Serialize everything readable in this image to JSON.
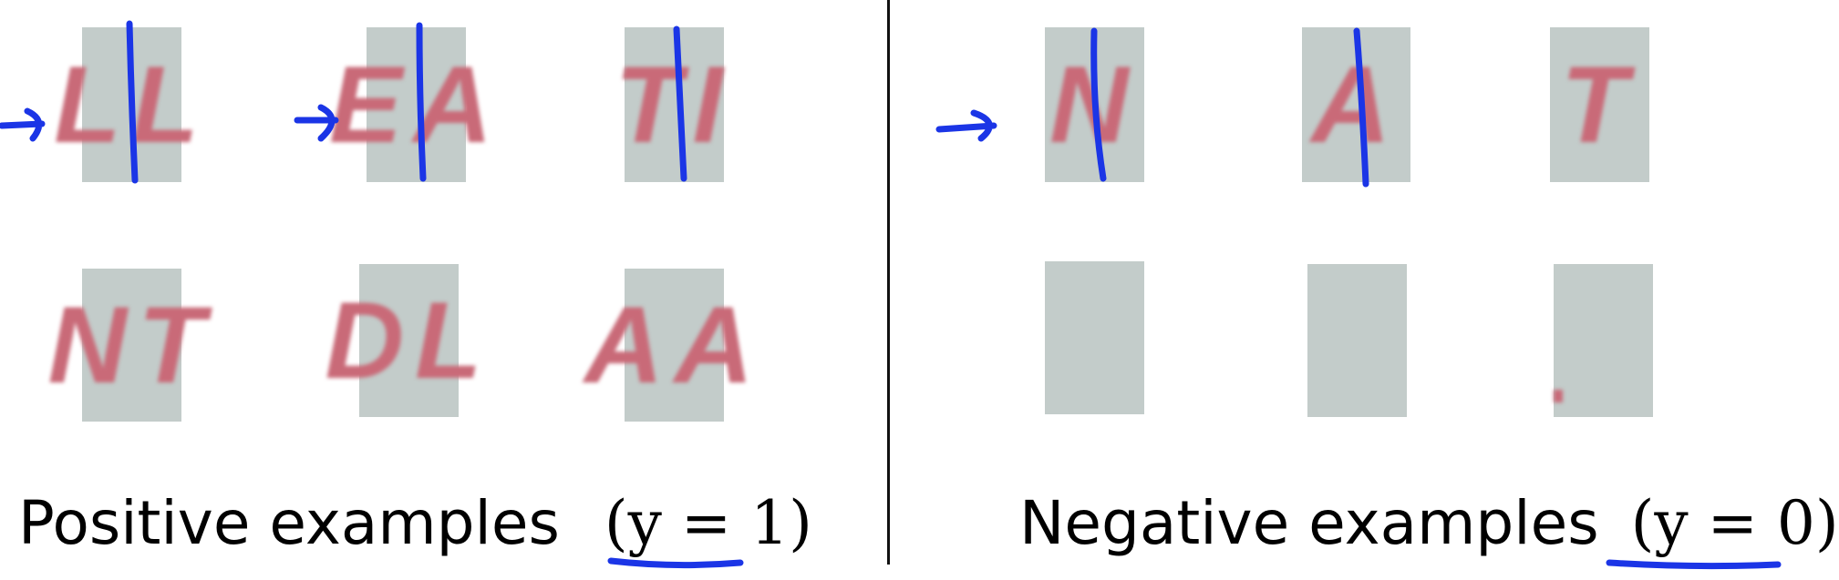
{
  "positive": {
    "label": "Positive examples",
    "label_math": "(y = 1)",
    "patches_row1": [
      "LL",
      "EA",
      "TI"
    ],
    "patches_row2": [
      "NT",
      "DL",
      "AA"
    ]
  },
  "negative": {
    "label": "Negative examples",
    "label_math": "(y = 0)",
    "patches_row1": [
      "N",
      "A",
      "T"
    ],
    "patches_row2": [
      "",
      "",
      ""
    ]
  },
  "colors": {
    "pen": "#1b35e6",
    "patch": "#c3ccca",
    "letter": "#c96a78"
  }
}
